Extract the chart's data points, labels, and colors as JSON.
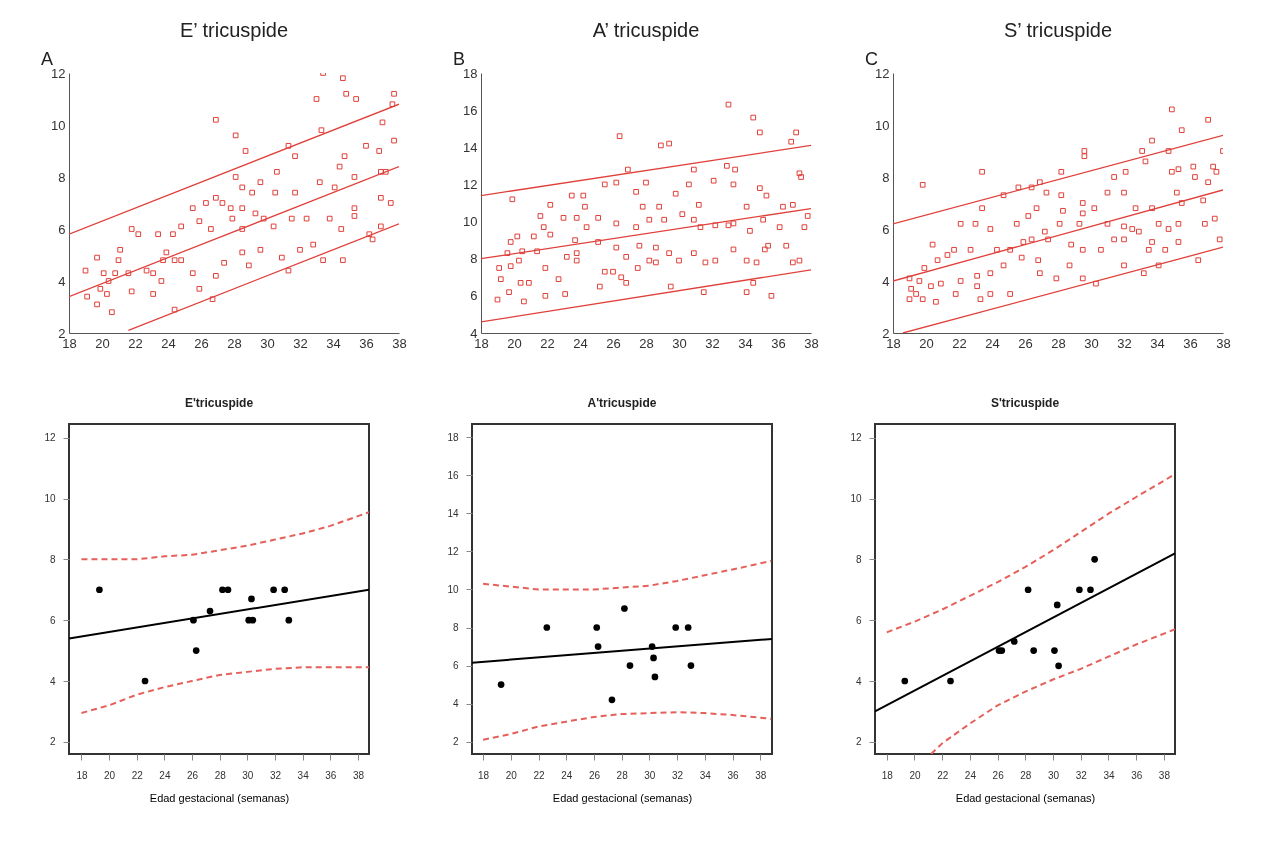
{
  "chart_data": [
    {
      "type": "scatter",
      "title": "E’ tricuspide",
      "annotations": [
        "A"
      ],
      "xlim": [
        18,
        38
      ],
      "xticks": [
        18,
        20,
        22,
        24,
        26,
        28,
        30,
        32,
        34,
        36,
        38
      ],
      "ylim": [
        2,
        12
      ],
      "yticks": [
        2,
        4,
        6,
        8,
        10,
        12
      ],
      "marker": "square",
      "series": [
        {
          "color": "#e0403a",
          "x": [
            33.4,
            34.6,
            33.0,
            34.8,
            35.4,
            26.9,
            33.3,
            28.1,
            28.7,
            31.3,
            36.0,
            36.8,
            31.7,
            34.7,
            30.6,
            34.4,
            29.6,
            28.1,
            28.5,
            29.1,
            30.5,
            31.7,
            33.2,
            34.1,
            35.3,
            26.9,
            27.3,
            25.5,
            26.3,
            27.8,
            28.5,
            29.3,
            29.8,
            25.9,
            26.6,
            27.9,
            28.5,
            30.4,
            31.5,
            32.4,
            33.8,
            34.5,
            35.3,
            36.2,
            36.4,
            33.4,
            34.6,
            31.3,
            32.0,
            32.8,
            30.9,
            29.6,
            28.9,
            28.5,
            27.4,
            26.9,
            26.7,
            25.9,
            25.5,
            24.8,
            23.9,
            23.4,
            21.8,
            22.2,
            21.1,
            21.0,
            21.6,
            22.7,
            23.1,
            23.6,
            23.1,
            21.8,
            24.4,
            20.6,
            19.7,
            19.1,
            19.0,
            19.7,
            20.1,
            20.4,
            20.8,
            19.9,
            20.3,
            24.4,
            24.3,
            24.8,
            23.7,
            35.3,
            36.9,
            36.9,
            37.7,
            37.6,
            37.0,
            37.7,
            37.2,
            37.5,
            36.9
          ],
          "values": [
            12.0,
            11.8,
            11.0,
            11.2,
            11.0,
            10.2,
            9.8,
            9.6,
            9.0,
            9.2,
            9.2,
            9.0,
            8.8,
            8.8,
            8.2,
            8.4,
            7.8,
            8.0,
            7.6,
            7.4,
            7.4,
            7.4,
            7.8,
            7.6,
            8.0,
            7.2,
            7.0,
            6.8,
            7.0,
            6.8,
            6.8,
            6.6,
            6.4,
            6.3,
            6.0,
            6.4,
            6.0,
            6.1,
            6.4,
            6.4,
            6.4,
            6.0,
            6.5,
            5.8,
            5.6,
            4.8,
            4.8,
            4.4,
            5.2,
            5.4,
            4.9,
            5.2,
            4.6,
            5.1,
            4.7,
            4.2,
            3.3,
            3.7,
            4.3,
            4.8,
            5.1,
            5.8,
            6.0,
            5.8,
            5.2,
            4.8,
            4.3,
            4.4,
            4.3,
            4.0,
            3.5,
            3.6,
            2.9,
            2.8,
            3.1,
            3.4,
            4.4,
            4.9,
            4.3,
            4.0,
            4.3,
            3.7,
            3.5,
            4.8,
            5.8,
            6.1,
            4.8,
            6.8,
            7.2,
            8.2,
            11.2,
            10.8,
            10.1,
            9.4,
            8.2,
            7.0,
            6.1
          ]
        },
        {
          "type": "line",
          "color": "#e0403a",
          "line_style": "solid",
          "marker": "none",
          "x": [
            18,
            38
          ],
          "values": [
            5.8,
            10.8
          ]
        },
        {
          "type": "line",
          "color": "#e0403a",
          "line_style": "solid",
          "marker": "none",
          "x": [
            18,
            38
          ],
          "values": [
            3.4,
            8.4
          ]
        },
        {
          "type": "line",
          "color": "#e0403a",
          "line_style": "solid",
          "marker": "none",
          "x": [
            21.6,
            38
          ],
          "values": [
            2.1,
            6.2
          ]
        }
      ]
    },
    {
      "type": "scatter",
      "title": "A’ tricuspide",
      "annotations": [
        "B"
      ],
      "xlim": [
        18,
        38
      ],
      "xticks": [
        18,
        20,
        22,
        24,
        26,
        28,
        30,
        32,
        34,
        36,
        38
      ],
      "ylim": [
        4,
        18
      ],
      "yticks": [
        4,
        6,
        8,
        10,
        12,
        14,
        16,
        18
      ],
      "marker": "square",
      "series": [
        {
          "color": "#e0403a",
          "x": [
            33.0,
            34.5,
            34.9,
            37.1,
            36.8,
            26.4,
            28.9,
            29.4,
            26.9,
            30.9,
            32.9,
            33.4,
            37.3,
            37.4,
            25.5,
            26.2,
            28.0,
            30.6,
            32.1,
            33.3,
            34.9,
            35.3,
            19.9,
            22.2,
            23.5,
            24.2,
            24.3,
            27.4,
            27.8,
            28.8,
            29.8,
            31.2,
            34.1,
            36.3,
            36.9,
            37.8,
            37.6,
            23.0,
            23.8,
            24.4,
            25.1,
            21.6,
            21.8,
            26.2,
            27.4,
            28.2,
            29.1,
            30.2,
            30.9,
            31.3,
            32.2,
            33.0,
            33.3,
            34.3,
            35.1,
            36.1,
            22.2,
            21.2,
            20.2,
            19.8,
            20.5,
            19.6,
            19.1,
            19.2,
            19.0,
            19.7,
            19.8,
            20.3,
            20.4,
            20.6,
            20.9,
            21.4,
            21.9,
            21.9,
            22.7,
            23.1,
            23.2,
            23.8,
            23.8,
            23.7,
            25.1,
            25.2,
            25.5,
            26.0,
            26.5,
            26.8,
            26.2,
            26.8,
            27.6,
            27.5,
            28.2,
            28.6,
            29.4,
            28.6,
            30.0,
            29.5,
            30.9,
            31.6,
            32.2,
            33.3,
            34.1,
            34.7,
            35.2,
            35.4,
            34.1,
            34.5,
            35.6,
            36.9,
            37.3,
            36.5,
            31.5
          ],
          "values": [
            16.3,
            15.6,
            14.8,
            14.8,
            14.3,
            14.6,
            14.1,
            14.2,
            12.8,
            12.8,
            13.0,
            12.8,
            12.6,
            12.4,
            12.0,
            12.1,
            12.1,
            12.0,
            12.2,
            12.0,
            11.8,
            11.4,
            11.2,
            10.9,
            11.4,
            11.4,
            10.8,
            11.6,
            10.8,
            10.8,
            11.5,
            10.9,
            10.8,
            10.8,
            10.9,
            10.3,
            9.7,
            10.2,
            10.2,
            9.7,
            10.2,
            10.3,
            9.7,
            9.9,
            9.7,
            10.1,
            10.1,
            10.4,
            10.1,
            9.7,
            9.8,
            9.8,
            9.9,
            9.5,
            10.1,
            9.7,
            9.3,
            9.2,
            9.2,
            8.9,
            8.4,
            8.3,
            7.5,
            6.9,
            5.8,
            6.2,
            7.6,
            7.9,
            6.7,
            5.7,
            6.7,
            8.4,
            7.5,
            6.0,
            6.9,
            6.1,
            8.1,
            7.9,
            8.3,
            9.0,
            8.9,
            6.5,
            7.3,
            7.3,
            7.0,
            6.7,
            8.6,
            8.1,
            8.7,
            7.5,
            7.9,
            8.6,
            8.3,
            7.8,
            7.9,
            6.5,
            8.3,
            7.8,
            7.9,
            8.5,
            7.9,
            7.8,
            8.5,
            8.7,
            6.2,
            6.7,
            6.0,
            7.8,
            7.9,
            8.7,
            6.2
          ]
        },
        {
          "type": "line",
          "color": "#e0403a",
          "line_style": "solid",
          "marker": "none",
          "x": [
            18,
            38
          ],
          "values": [
            11.4,
            14.1
          ]
        },
        {
          "type": "line",
          "color": "#e0403a",
          "line_style": "solid",
          "marker": "none",
          "x": [
            18,
            38
          ],
          "values": [
            8.0,
            10.7
          ]
        },
        {
          "type": "line",
          "color": "#e0403a",
          "line_style": "solid",
          "marker": "none",
          "x": [
            18,
            38
          ],
          "values": [
            4.6,
            7.4
          ]
        }
      ]
    },
    {
      "type": "scatter",
      "title": "S’ tricuspide",
      "annotations": [
        "C"
      ],
      "xlim": [
        18,
        38
      ],
      "xticks": [
        18,
        20,
        22,
        24,
        26,
        28,
        30,
        32,
        34,
        36,
        38
      ],
      "ylim": [
        2,
        12
      ],
      "yticks": [
        2,
        4,
        6,
        8,
        10,
        12
      ],
      "marker": "square",
      "series": [
        {
          "color": "#e0403a",
          "x": [
            34.9,
            37.1,
            35.5,
            33.7,
            33.1,
            34.7,
            38.0,
            29.6,
            29.6,
            33.3,
            23.4,
            28.2,
            32.1,
            34.9,
            35.3,
            36.2,
            37.4,
            37.6,
            36.3,
            19.8,
            26.9,
            31.4,
            37.1,
            24.7,
            25.6,
            26.4,
            27.3,
            28.2,
            31.0,
            32.0,
            35.2,
            36.8,
            23.4,
            26.7,
            28.3,
            29.5,
            30.2,
            32.7,
            33.7,
            35.5,
            22.1,
            23.0,
            25.5,
            26.2,
            27.2,
            28.1,
            29.3,
            29.5,
            31.0,
            32.0,
            32.5,
            34.1,
            34.7,
            35.3,
            36.9,
            37.5,
            37.8,
            35.3,
            33.7,
            32.9,
            32.0,
            31.4,
            30.6,
            29.5,
            28.8,
            27.4,
            26.4,
            25.9,
            25.1,
            24.3,
            23.9,
            22.7,
            21.7,
            20.4,
            19.9,
            20.7,
            21.3,
            19.0,
            19.6,
            20.3,
            20.9,
            19.1,
            19.4,
            19.8,
            19.0,
            20.6,
            22.1,
            21.8,
            23.1,
            23.3,
            23.9,
            25.1,
            23.9,
            23.1,
            24.7,
            25.8,
            26.8,
            26.9,
            27.9,
            28.7,
            29.5,
            30.3,
            32.0,
            33.2,
            34.1,
            34.5,
            36.5,
            33.5
          ],
          "values": [
            10.6,
            10.2,
            9.8,
            9.4,
            9.0,
            9.0,
            9.0,
            9.0,
            8.8,
            8.6,
            8.2,
            8.2,
            8.2,
            8.2,
            8.3,
            8.4,
            8.4,
            8.2,
            8.0,
            7.7,
            7.8,
            8.0,
            7.8,
            7.3,
            7.6,
            7.6,
            7.4,
            7.3,
            7.4,
            7.4,
            7.4,
            7.1,
            6.8,
            6.8,
            6.7,
            7.0,
            6.8,
            6.8,
            6.8,
            7.0,
            6.2,
            6.2,
            6.2,
            6.5,
            5.9,
            6.2,
            6.2,
            6.6,
            6.2,
            6.1,
            6.0,
            6.2,
            6.0,
            6.2,
            6.2,
            6.4,
            5.6,
            5.5,
            5.5,
            5.9,
            5.6,
            5.6,
            5.2,
            5.2,
            5.4,
            5.6,
            5.6,
            5.5,
            5.2,
            5.2,
            6.0,
            5.2,
            5.2,
            5.4,
            4.5,
            4.8,
            5.0,
            4.1,
            4.0,
            3.8,
            3.9,
            3.7,
            3.5,
            3.3,
            3.3,
            3.2,
            4.0,
            3.5,
            3.8,
            3.3,
            3.5,
            3.5,
            4.3,
            4.2,
            4.6,
            4.9,
            4.8,
            4.3,
            4.1,
            4.6,
            4.1,
            3.9,
            4.6,
            4.3,
            4.6,
            5.2,
            4.8,
            5.2
          ]
        },
        {
          "type": "line",
          "color": "#e0403a",
          "line_style": "solid",
          "marker": "none",
          "x": [
            18,
            38
          ],
          "values": [
            6.2,
            9.6
          ]
        },
        {
          "type": "line",
          "color": "#e0403a",
          "line_style": "solid",
          "marker": "none",
          "x": [
            18,
            38
          ],
          "values": [
            4.0,
            7.5
          ]
        },
        {
          "type": "line",
          "color": "#e0403a",
          "line_style": "solid",
          "marker": "none",
          "x": [
            18.6,
            38
          ],
          "values": [
            2.0,
            5.3
          ]
        }
      ]
    },
    {
      "type": "scatter",
      "title": "E'tricuspide",
      "xlabel": "Edad gestacional (semanas)",
      "xlim": [
        17.1,
        38.8
      ],
      "xticks": [
        18,
        20,
        22,
        24,
        26,
        28,
        30,
        32,
        34,
        36,
        38
      ],
      "ylim": [
        1.6,
        12.45
      ],
      "yticks": [
        2,
        4,
        6,
        8,
        10,
        12
      ],
      "marker": "circle",
      "series": [
        {
          "color": "#000000",
          "x": [
            19.3,
            22.6,
            26.1,
            26.3,
            27.3,
            28.2,
            28.6,
            30.1,
            30.3,
            30.4,
            31.9,
            32.7,
            33.0
          ],
          "values": [
            7,
            4,
            6,
            5,
            6.3,
            7,
            7,
            6,
            6.7,
            6,
            7,
            7,
            6
          ]
        },
        {
          "type": "line",
          "color": "#000000",
          "line_style": "solid",
          "marker": "none",
          "x": [
            17.1,
            38.8
          ],
          "values": [
            5.4,
            7.0
          ]
        },
        {
          "type": "line",
          "color": "#e5605a",
          "line_style": "dashed",
          "marker": "none",
          "x": [
            18,
            20,
            22,
            24,
            26,
            28,
            30,
            32,
            34,
            36,
            38.8
          ],
          "values": [
            8.0,
            8.0,
            8.0,
            8.1,
            8.15,
            8.3,
            8.45,
            8.65,
            8.85,
            9.1,
            9.55
          ]
        },
        {
          "type": "line",
          "color": "#e5605a",
          "line_style": "dashed",
          "marker": "none",
          "x": [
            18,
            20,
            22,
            24,
            26,
            28,
            30,
            32,
            34,
            36,
            38.8
          ],
          "values": [
            2.95,
            3.2,
            3.55,
            3.8,
            4.0,
            4.2,
            4.3,
            4.4,
            4.45,
            4.45,
            4.45
          ]
        }
      ]
    },
    {
      "type": "scatter",
      "title": "A'tricuspide",
      "xlabel": "Edad gestacional (semanas)",
      "xlim": [
        17.2,
        38.85
      ],
      "xticks": [
        18,
        20,
        22,
        24,
        26,
        28,
        30,
        32,
        34,
        36,
        38
      ],
      "ylim": [
        1.35,
        18.7
      ],
      "yticks": [
        2,
        4,
        6,
        8,
        10,
        12,
        14,
        16,
        18
      ],
      "marker": "circle",
      "series": [
        {
          "color": "#000000",
          "x": [
            19.3,
            22.6,
            26.2,
            26.3,
            27.3,
            28.2,
            28.6,
            30.2,
            30.3,
            30.4,
            31.9,
            32.8,
            33.0
          ],
          "values": [
            5.0,
            8.0,
            8.0,
            7.0,
            4.2,
            9.0,
            6.0,
            7.0,
            6.4,
            5.4,
            8.0,
            8.0,
            6.0
          ]
        },
        {
          "type": "line",
          "color": "#000000",
          "line_style": "solid",
          "marker": "none",
          "x": [
            17.2,
            38.85
          ],
          "values": [
            6.15,
            7.4
          ]
        },
        {
          "type": "line",
          "color": "#e5605a",
          "line_style": "dashed",
          "marker": "none",
          "x": [
            18,
            20,
            22,
            24,
            26,
            28,
            30,
            32,
            34,
            36,
            38.8
          ],
          "values": [
            10.3,
            10.15,
            10.0,
            10.0,
            10.0,
            10.1,
            10.2,
            10.45,
            10.75,
            11.05,
            11.5
          ]
        },
        {
          "type": "line",
          "color": "#e5605a",
          "line_style": "dashed",
          "marker": "none",
          "x": [
            18,
            20,
            22,
            24,
            26,
            28,
            30,
            32,
            34,
            36,
            38.8
          ],
          "values": [
            2.1,
            2.4,
            2.8,
            3.05,
            3.3,
            3.45,
            3.5,
            3.55,
            3.5,
            3.4,
            3.2
          ]
        }
      ]
    },
    {
      "type": "scatter",
      "title": "S'tricuspide",
      "xlabel": "Edad gestacional (semanas)",
      "xlim": [
        17.15,
        38.8
      ],
      "xticks": [
        18,
        20,
        22,
        24,
        26,
        28,
        30,
        32,
        34,
        36,
        38
      ],
      "ylim": [
        1.6,
        12.45
      ],
      "yticks": [
        2,
        4,
        6,
        8,
        10,
        12
      ],
      "marker": "circle",
      "series": [
        {
          "color": "#000000",
          "x": [
            19.3,
            22.6,
            26.1,
            26.3,
            27.2,
            28.2,
            28.6,
            30.1,
            30.3,
            30.4,
            31.9,
            32.7,
            33.0
          ],
          "values": [
            4,
            4,
            5,
            5,
            5.3,
            7,
            5,
            5,
            6.5,
            4.5,
            7,
            7,
            8
          ]
        },
        {
          "type": "line",
          "color": "#000000",
          "line_style": "solid",
          "marker": "none",
          "x": [
            17.15,
            38.8
          ],
          "values": [
            3.0,
            8.2
          ]
        },
        {
          "type": "line",
          "color": "#e5605a",
          "line_style": "dashed",
          "marker": "none",
          "x": [
            18,
            20,
            22,
            24,
            26,
            28,
            30,
            32,
            34,
            36,
            38.8
          ],
          "values": [
            5.6,
            5.95,
            6.35,
            6.8,
            7.25,
            7.75,
            8.3,
            8.9,
            9.5,
            10.05,
            10.8
          ]
        },
        {
          "type": "line",
          "color": "#e5605a",
          "line_style": "dashed",
          "marker": "none",
          "x": [
            21.2,
            22,
            24,
            26,
            28,
            30,
            32,
            34,
            36,
            38.8
          ],
          "values": [
            1.6,
            1.95,
            2.6,
            3.2,
            3.65,
            4.05,
            4.4,
            4.8,
            5.2,
            5.7
          ]
        }
      ]
    }
  ]
}
